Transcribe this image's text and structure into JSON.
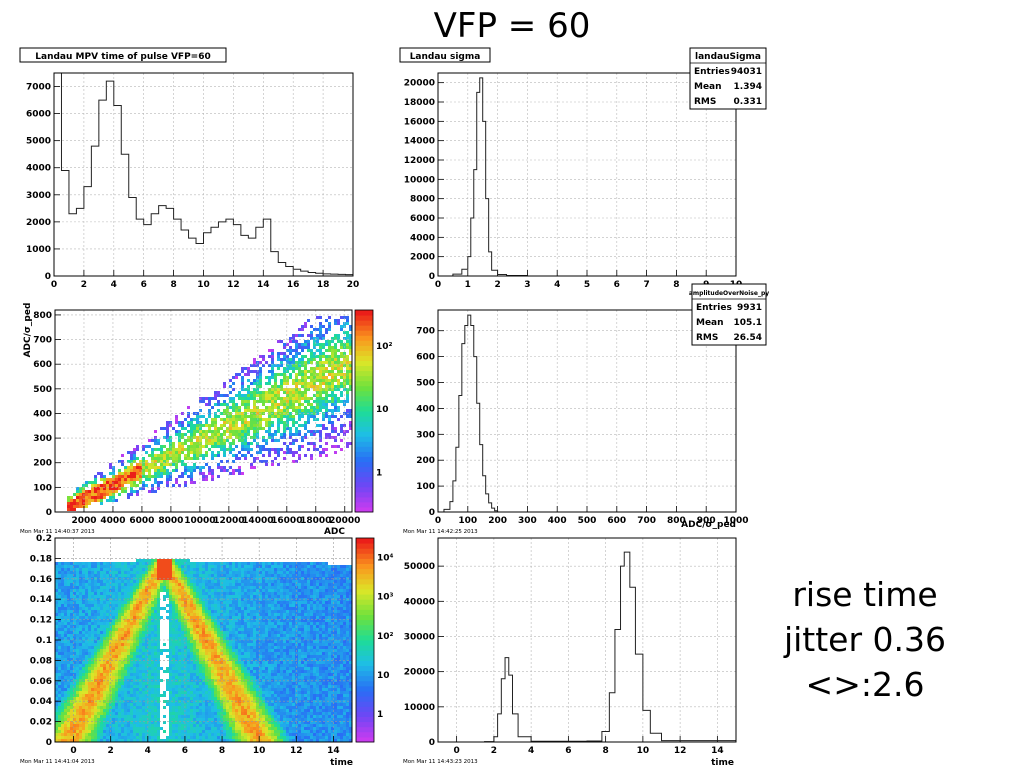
{
  "slide": {
    "title": "VFP = 60",
    "note_lines": [
      "rise time",
      "jitter 0.36",
      "<>:2.6"
    ]
  },
  "chart_data": [
    {
      "id": "p1",
      "type": "histogram-step",
      "title": "Landau MPV time of pulse VFP=60",
      "xlim": [
        0,
        20
      ],
      "ylim": [
        0,
        7500
      ],
      "xticks": [
        0,
        2,
        4,
        6,
        8,
        10,
        12,
        14,
        16,
        18,
        20
      ],
      "yticks": [
        0,
        1000,
        2000,
        3000,
        4000,
        5000,
        6000,
        7000
      ],
      "grid": true,
      "x": [
        0,
        0.5,
        1,
        1.5,
        2,
        2.5,
        3,
        3.5,
        4,
        4.5,
        5,
        5.5,
        6,
        6.5,
        7,
        7.5,
        8,
        8.5,
        9,
        9.5,
        10,
        10.5,
        11,
        11.5,
        12,
        12.5,
        13,
        13.5,
        14,
        14.5,
        15,
        15.5,
        16,
        16.5,
        17,
        17.5,
        18,
        18.5,
        19,
        19.5,
        20
      ],
      "y": [
        7500,
        3900,
        2300,
        2500,
        3300,
        4800,
        6500,
        7200,
        6300,
        4500,
        2900,
        2100,
        1900,
        2300,
        2600,
        2500,
        2100,
        1700,
        1400,
        1200,
        1600,
        1800,
        2000,
        2100,
        1900,
        1500,
        1400,
        1800,
        2100,
        900,
        500,
        350,
        250,
        180,
        130,
        100,
        80,
        70,
        60,
        50,
        40
      ]
    },
    {
      "id": "p2",
      "type": "histogram-step",
      "title": "Landau sigma",
      "xlim": [
        0,
        10
      ],
      "ylim": [
        0,
        21000
      ],
      "xticks": [
        0,
        1,
        2,
        3,
        4,
        5,
        6,
        7,
        8,
        9,
        10
      ],
      "yticks": [
        0,
        2000,
        4000,
        6000,
        8000,
        10000,
        12000,
        14000,
        16000,
        18000,
        20000
      ],
      "grid": true,
      "stats": {
        "name": "landauSigma",
        "rows": [
          [
            "Entries",
            "94031"
          ],
          [
            "Mean",
            "1.394"
          ],
          [
            "RMS",
            "0.331"
          ]
        ]
      },
      "x": [
        0,
        0.5,
        0.8,
        1.0,
        1.1,
        1.2,
        1.3,
        1.4,
        1.5,
        1.6,
        1.7,
        1.8,
        2.0,
        2.3,
        3.0,
        10
      ],
      "y": [
        0,
        200,
        700,
        2000,
        6000,
        11000,
        19000,
        20500,
        16000,
        8000,
        2500,
        600,
        150,
        50,
        0,
        0
      ]
    },
    {
      "id": "p3",
      "type": "heatmap",
      "xlabel": "ADC",
      "ylabel": "ADC/σ_ped",
      "xlim": [
        0,
        20500
      ],
      "ylim": [
        0,
        820
      ],
      "xticks": [
        2000,
        4000,
        6000,
        8000,
        10000,
        12000,
        14000,
        16000,
        18000,
        20000
      ],
      "yticks": [
        0,
        100,
        200,
        300,
        400,
        500,
        600,
        700,
        800
      ],
      "zscale": "log",
      "zticks": [
        "1",
        "10",
        "10²"
      ],
      "grid": true,
      "timestamp": "Mon Mar 11 14:40:37 2013"
    },
    {
      "id": "p4",
      "type": "histogram-step",
      "xlabel": "ADC/σ_ped",
      "xlim": [
        0,
        1000
      ],
      "ylim": [
        0,
        780
      ],
      "xticks": [
        0,
        100,
        200,
        300,
        400,
        500,
        600,
        700,
        800,
        900,
        1000
      ],
      "yticks": [
        0,
        100,
        200,
        300,
        400,
        500,
        600,
        700
      ],
      "grid": true,
      "stats": {
        "name": "amplitudeOverNoise_py",
        "rows": [
          [
            "Entries",
            "9931"
          ],
          [
            "Mean",
            "105.1"
          ],
          [
            "RMS",
            "26.54"
          ]
        ]
      },
      "timestamp": "Mon Mar 11 14:42:25 2013",
      "x": [
        0,
        20,
        40,
        50,
        60,
        70,
        80,
        90,
        100,
        110,
        120,
        130,
        140,
        150,
        160,
        170,
        180,
        190,
        200,
        1000
      ],
      "y": [
        0,
        10,
        40,
        120,
        250,
        450,
        650,
        720,
        760,
        720,
        600,
        420,
        260,
        140,
        70,
        35,
        15,
        5,
        0,
        0
      ]
    },
    {
      "id": "p5",
      "type": "heatmap",
      "xlabel": "time",
      "xlim": [
        -1,
        15
      ],
      "ylim": [
        0,
        0.2
      ],
      "xticks": [
        0,
        2,
        4,
        6,
        8,
        10,
        12,
        14
      ],
      "yticks": [
        0,
        0.02,
        0.04,
        0.06,
        0.08,
        0.1,
        0.12,
        0.14,
        0.16,
        0.18,
        0.2
      ],
      "zscale": "log",
      "zticks": [
        "1",
        "10",
        "10²",
        "10³",
        "10⁴"
      ],
      "grid": true,
      "timestamp": "Mon Mar 11 14:41:04 2013"
    },
    {
      "id": "p6",
      "type": "histogram-step",
      "xlabel": "time",
      "xlim": [
        -1,
        15
      ],
      "ylim": [
        0,
        58000
      ],
      "xticks": [
        0,
        2,
        4,
        6,
        8,
        10,
        12,
        14
      ],
      "yticks": [
        0,
        10000,
        20000,
        30000,
        40000,
        50000
      ],
      "grid": true,
      "timestamp": "Mon Mar 11 14:43:23 2013",
      "x": [
        -1,
        1.5,
        2.0,
        2.2,
        2.4,
        2.6,
        2.8,
        3.0,
        3.3,
        4.0,
        7.0,
        7.8,
        8.2,
        8.5,
        8.8,
        9.0,
        9.3,
        9.6,
        10.0,
        10.4,
        11.0,
        15
      ],
      "y": [
        0,
        100,
        1500,
        8000,
        18000,
        24000,
        19000,
        8000,
        1500,
        200,
        300,
        3000,
        14000,
        32000,
        50000,
        54000,
        44000,
        25000,
        9000,
        2500,
        400,
        0
      ]
    }
  ]
}
